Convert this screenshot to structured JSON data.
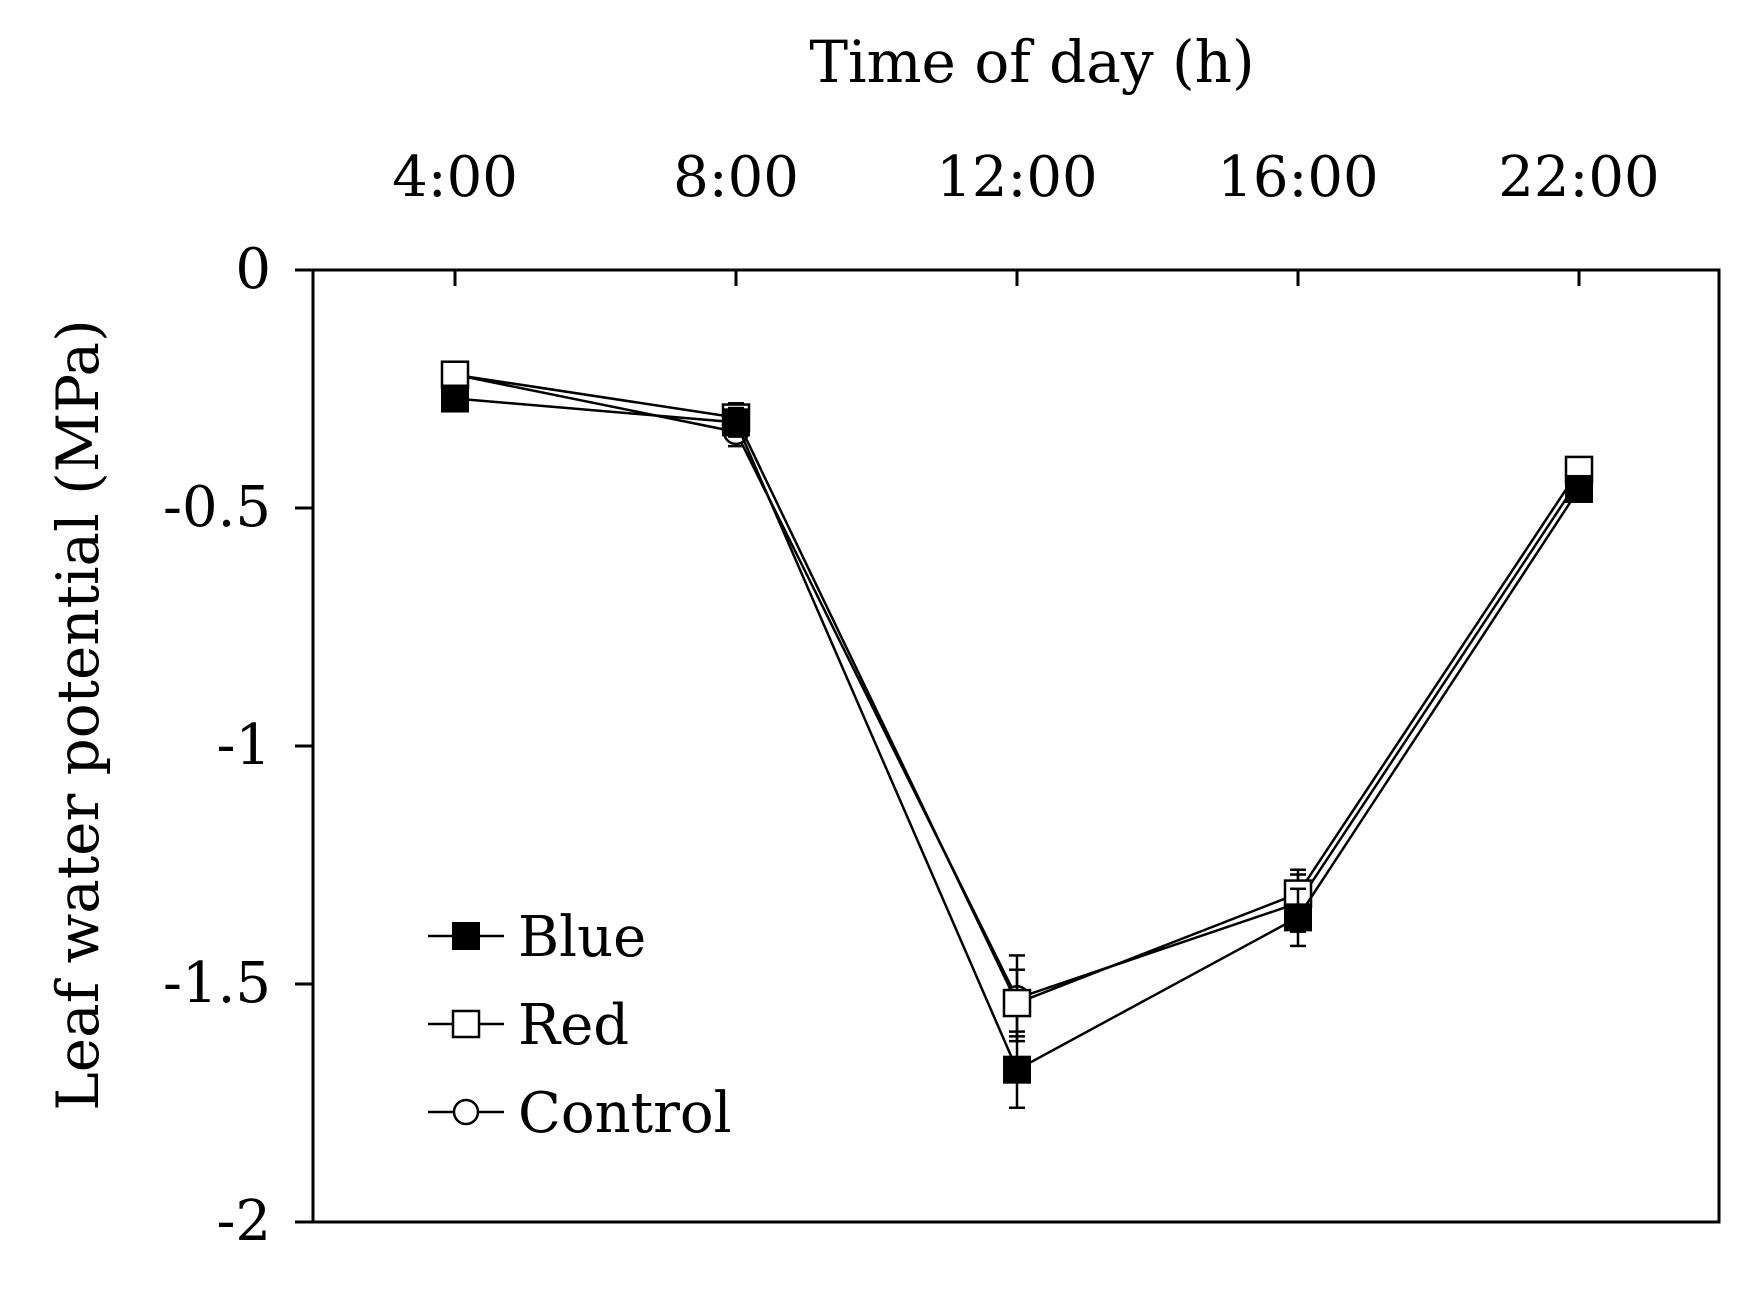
{
  "chart_data": {
    "type": "line",
    "title": "",
    "xlabel": "Time of day (h)",
    "ylabel": "Leaf water potential (MPa)",
    "categories": [
      "4:00",
      "8:00",
      "12:00",
      "16:00",
      "22:00"
    ],
    "ylim": [
      -2,
      0
    ],
    "yticks": [
      0,
      -0.5,
      -1,
      -1.5,
      -2
    ],
    "ytick_labels": [
      "0",
      "-0.5",
      "-1",
      "-1.5",
      "-2"
    ],
    "x_axis_position": "top",
    "grid": false,
    "legend_position": "bottom-left",
    "series": [
      {
        "name": "Blue",
        "marker": "filled-square",
        "values": [
          -0.27,
          -0.32,
          -1.68,
          -1.36,
          -0.46
        ],
        "errors": [
          0.02,
          0.03,
          0.08,
          0.06,
          0.02
        ]
      },
      {
        "name": "Red",
        "marker": "open-square",
        "values": [
          -0.22,
          -0.31,
          -1.54,
          -1.31,
          -0.42
        ],
        "errors": [
          0.02,
          0.03,
          0.07,
          0.05,
          0.02
        ]
      },
      {
        "name": "Control",
        "marker": "open-circle",
        "values": [
          -0.22,
          -0.34,
          -1.53,
          -1.33,
          -0.44
        ],
        "errors": [
          0.02,
          0.03,
          0.09,
          0.06,
          0.02
        ]
      }
    ]
  }
}
